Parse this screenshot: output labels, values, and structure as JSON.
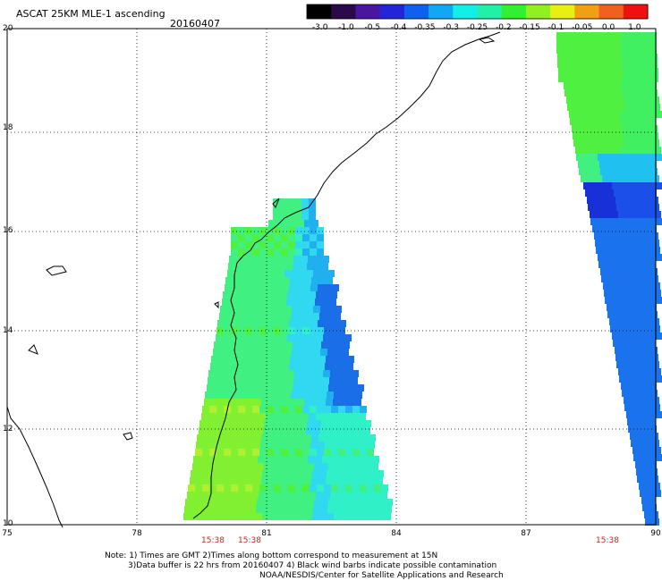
{
  "title": "ASCAT 25KM MLE-1 ascending",
  "date": "20160407",
  "colorbar": {
    "ticks": [
      "-3.0",
      "-1.0",
      "-0.5",
      "-0.4",
      "-0.35",
      "-0.3",
      "-0.25",
      "-0.2",
      "-0.15",
      "-0.1",
      "-0.05",
      "0.0",
      "1.0"
    ],
    "colors": [
      "#000000",
      "#2a0a4a",
      "#4a16a0",
      "#2424d8",
      "#1060f0",
      "#10a8f0",
      "#10f0e8",
      "#20f0a8",
      "#30f030",
      "#90f020",
      "#e8f010",
      "#f0a010",
      "#f06020",
      "#f01010"
    ]
  },
  "axes": {
    "lat_labels": [
      "20",
      "18",
      "16",
      "14",
      "12",
      "10"
    ],
    "lon_labels": [
      "75",
      "78",
      "81",
      "84",
      "87",
      "90"
    ]
  },
  "pass_times": [
    "15:38",
    "15:38",
    "15:38"
  ],
  "notes": [
    "Note: 1) Times are GMT 2)Times along bottom correspond to measurement at 15N",
    "3)Data buffer is 22 hrs from 20160407 4) Black wind barbs indicate possible contamination",
    "NOAA/NESDIS/Center for Satellite Applications and Research"
  ]
}
